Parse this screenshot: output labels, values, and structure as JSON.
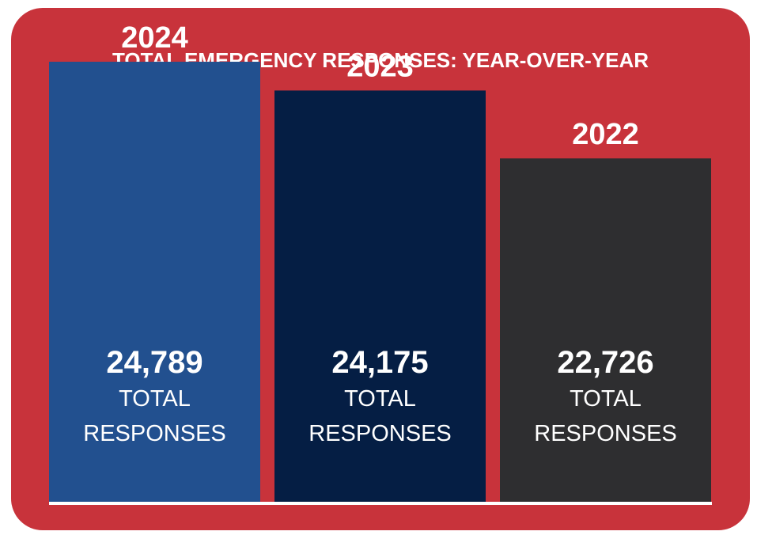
{
  "colors": {
    "background": "#c8333b",
    "baseline": "#ffffff",
    "text": "#ffffff"
  },
  "chart_data": {
    "type": "bar",
    "title": "TOTAL EMERGENCY RESPONSES: YEAR-OVER-YEAR",
    "categories": [
      "2024",
      "2023",
      "2022"
    ],
    "values": [
      24789,
      24175,
      22726
    ],
    "value_labels": [
      "24,789",
      "24,175",
      "22,726"
    ],
    "caption_line1": "TOTAL",
    "caption_line2": "RESPONSES",
    "bar_colors": [
      "#22508f",
      "#051e44",
      "#2e2e30"
    ],
    "ylim": [
      15400,
      25600
    ],
    "grid": false,
    "legend": "none",
    "xlabel": "",
    "ylabel": ""
  }
}
